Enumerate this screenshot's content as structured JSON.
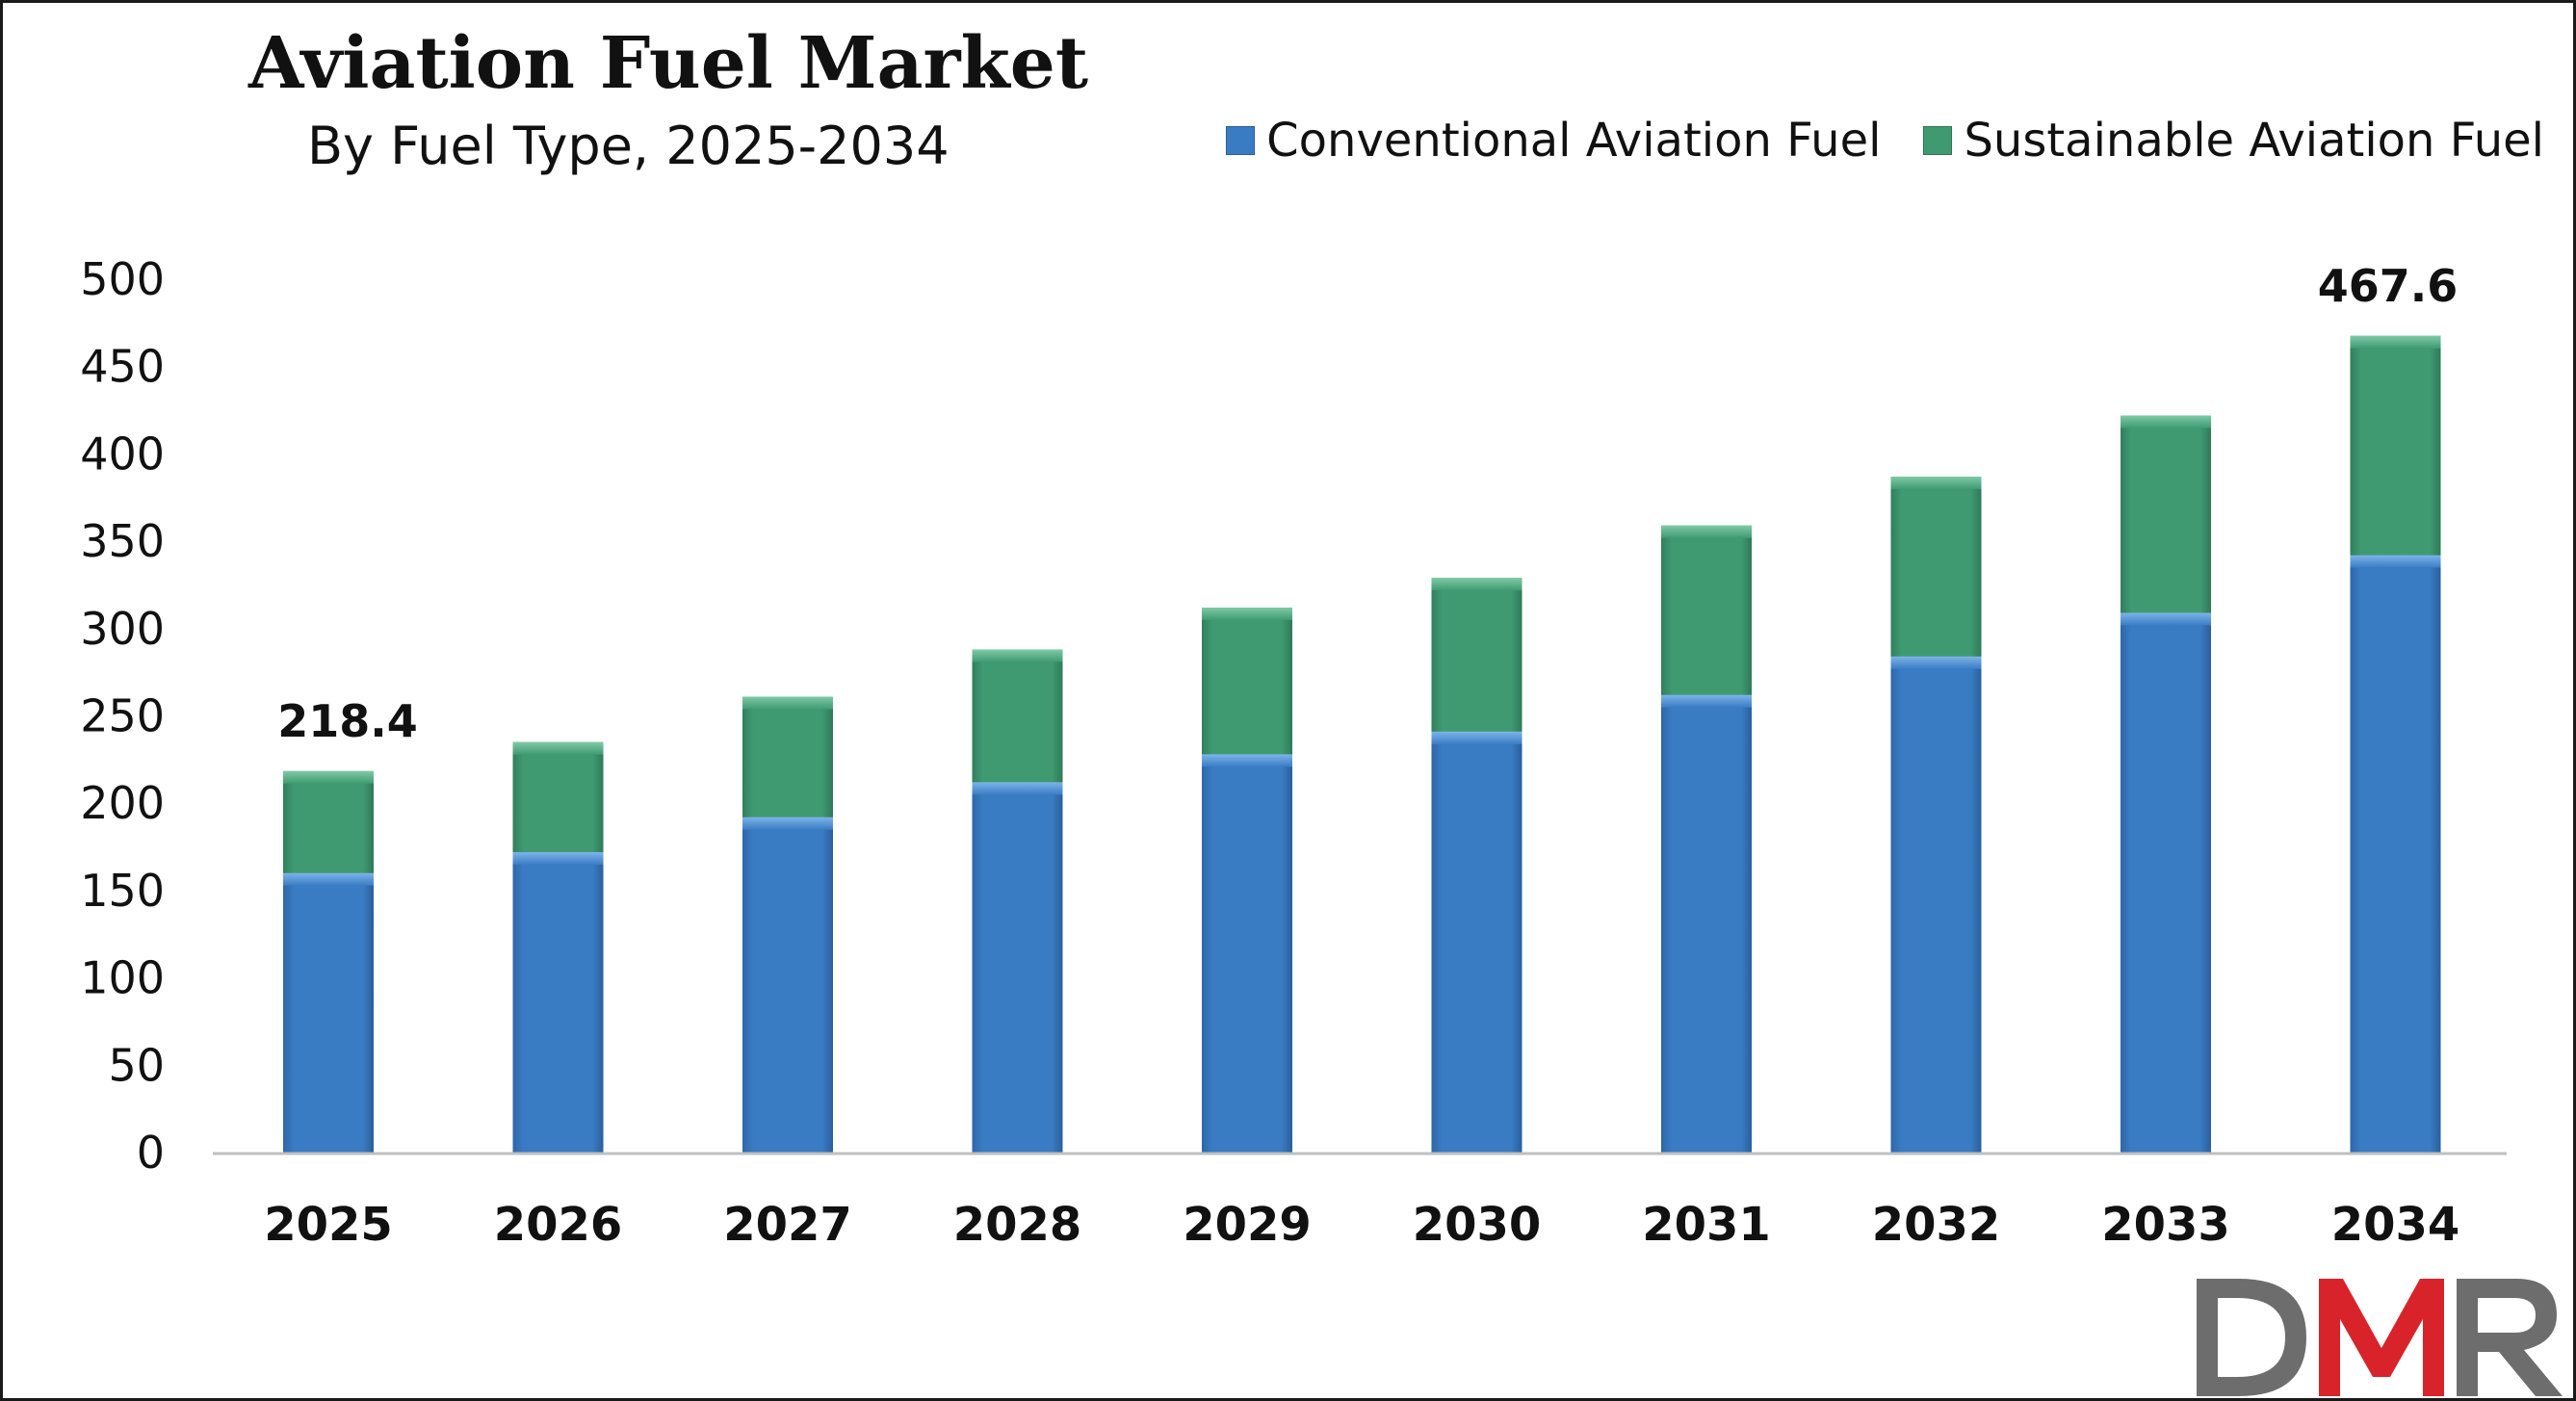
{
  "chart_data": {
    "type": "bar",
    "stacked": true,
    "title": "Aviation Fuel Market",
    "subtitle": "By Fuel Type, 2025-2034",
    "xlabel": "",
    "ylabel": "",
    "ylim": [
      0,
      500
    ],
    "yticks": [
      0,
      50,
      100,
      150,
      200,
      250,
      300,
      350,
      400,
      450,
      500
    ],
    "grid": false,
    "legend_position": "top-right",
    "categories": [
      "2025",
      "2026",
      "2027",
      "2028",
      "2029",
      "2030",
      "2031",
      "2032",
      "2033",
      "2034"
    ],
    "series": [
      {
        "name": "Conventional Aviation Fuel",
        "color": "#3a7cc4",
        "values": [
          160,
          172,
          192,
          212,
          228,
          241,
          262,
          284,
          309,
          342
        ]
      },
      {
        "name": "Sustainable Aviation Fuel",
        "color": "#3f9a72",
        "values": [
          58.4,
          63,
          69,
          76,
          84,
          88,
          97,
          103,
          113,
          125.6
        ]
      }
    ],
    "data_labels": [
      {
        "category": "2025",
        "text": "218.4"
      },
      {
        "category": "2034",
        "text": "467.6"
      }
    ]
  },
  "logo": {
    "text": "DMR"
  },
  "colors": {
    "axis": "#bfbfbf",
    "logo_gray": "#6d6d6d",
    "logo_red": "#d8232a"
  }
}
